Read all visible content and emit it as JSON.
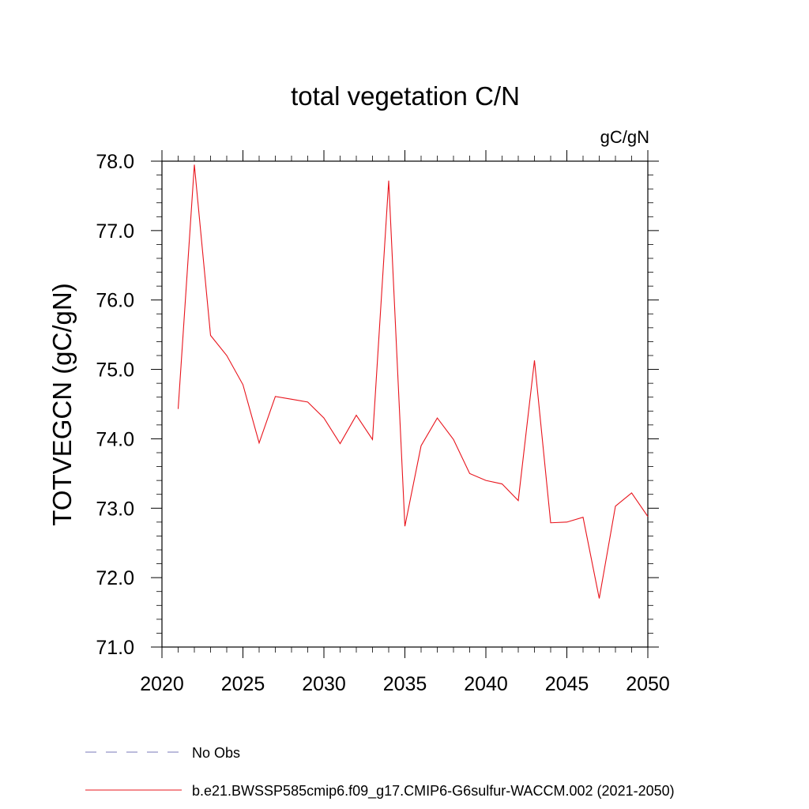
{
  "chart_data": {
    "type": "line",
    "title": "total vegetation C/N",
    "units_label": "gC/gN",
    "ylabel": "TOTVEGCN  (gC/gN)",
    "xlabel": "",
    "xlim": [
      2020,
      2050
    ],
    "ylim": [
      71.0,
      78.0
    ],
    "x_ticks": [
      2020,
      2025,
      2030,
      2035,
      2040,
      2045,
      2050
    ],
    "x_tick_labels": [
      "2020",
      "2025",
      "2030",
      "2035",
      "2040",
      "2045",
      "2050"
    ],
    "y_ticks": [
      71,
      72,
      73,
      74,
      75,
      76,
      77,
      78
    ],
    "y_tick_labels": [
      "71.0",
      "72.0",
      "73.0",
      "74.0",
      "75.0",
      "76.0",
      "77.0",
      "78.0"
    ],
    "x": [
      2021,
      2022,
      2023,
      2024,
      2025,
      2026,
      2027,
      2028,
      2029,
      2030,
      2031,
      2032,
      2033,
      2034,
      2035,
      2036,
      2037,
      2038,
      2039,
      2040,
      2041,
      2042,
      2043,
      2044,
      2045,
      2046,
      2047,
      2048,
      2049,
      2050
    ],
    "series": [
      {
        "name": "b.e21.BWSSP585cmip6.f09_g17.CMIP6-G6sulfur-WACCM.002 (2021-2050)",
        "color": "#e8141c",
        "values": [
          74.43,
          77.95,
          75.49,
          75.2,
          74.78,
          73.94,
          74.61,
          74.57,
          74.53,
          74.3,
          73.93,
          74.34,
          73.99,
          77.72,
          72.74,
          73.9,
          74.3,
          73.99,
          73.5,
          73.4,
          73.35,
          73.11,
          75.13,
          72.79,
          72.8,
          72.87,
          71.7,
          73.03,
          73.22,
          72.88
        ]
      }
    ],
    "legend": {
      "placement": "bottom-left",
      "entries": [
        {
          "label": "No Obs",
          "style": "dashed",
          "color": "#7a78b8"
        },
        {
          "label": "b.e21.BWSSP585cmip6.f09_g17.CMIP6-G6sulfur-WACCM.002 (2021-2050)",
          "style": "solid",
          "color": "#e8141c"
        }
      ]
    },
    "grid": false
  }
}
